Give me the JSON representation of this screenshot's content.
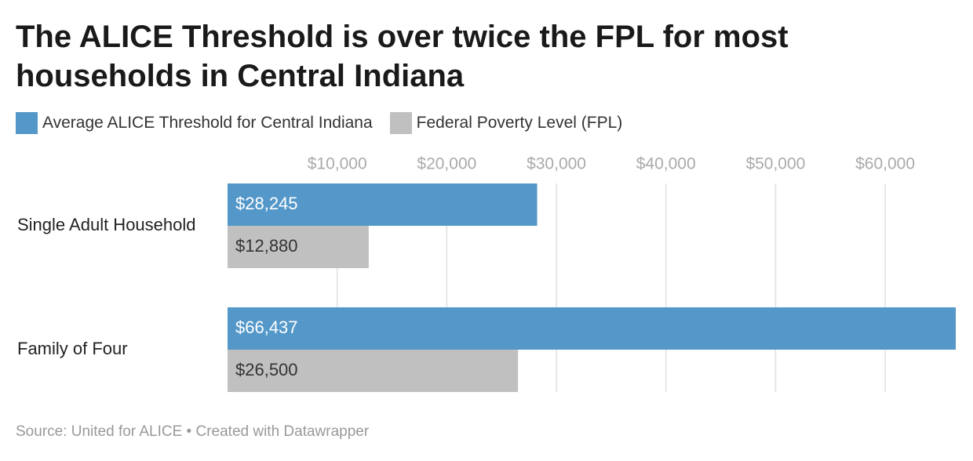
{
  "chart_data": {
    "type": "bar",
    "orientation": "horizontal",
    "title": "The ALICE Threshold is over twice the FPL for most households in Central Indiana",
    "categories": [
      "Single Adult Household",
      "Family of Four"
    ],
    "series": [
      {
        "name": "Average ALICE Threshold for Central Indiana",
        "color": "#5497c9",
        "values": [
          28245,
          66437
        ],
        "value_labels": [
          "$28,245",
          "$66,437"
        ]
      },
      {
        "name": "Federal Poverty Level (FPL)",
        "color": "#c0c0c0",
        "values": [
          12880,
          26500
        ],
        "value_labels": [
          "$12,880",
          "$26,500"
        ]
      }
    ],
    "xlim": [
      0,
      66437
    ],
    "xticks": [
      {
        "value": 10000,
        "label": "$10,000"
      },
      {
        "value": 20000,
        "label": "$20,000"
      },
      {
        "value": 30000,
        "label": "$30,000"
      },
      {
        "value": 40000,
        "label": "$40,000"
      },
      {
        "value": 50000,
        "label": "$50,000"
      },
      {
        "value": 60000,
        "label": "$60,000"
      }
    ],
    "grid": true,
    "legend": "top",
    "source": "Source: United for ALICE • Created with Datawrapper"
  }
}
